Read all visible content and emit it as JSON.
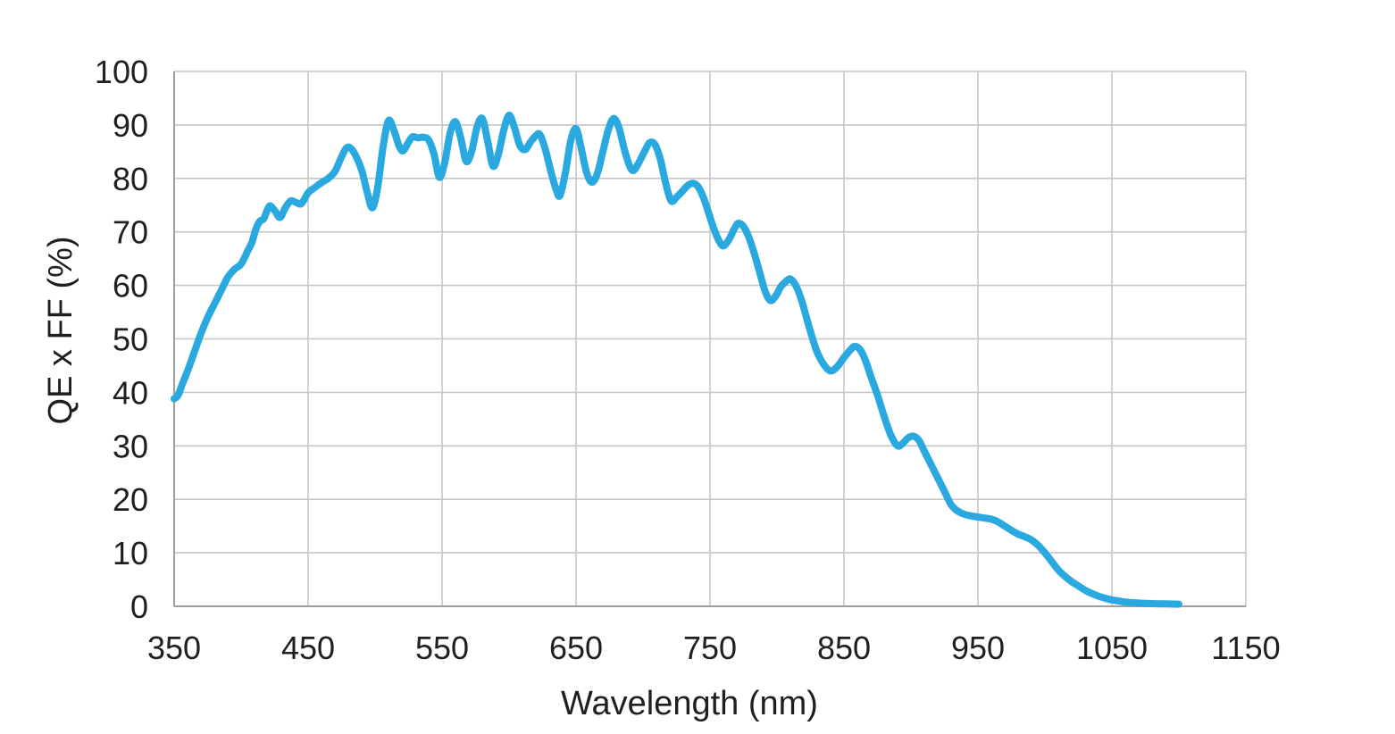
{
  "chart_data": {
    "type": "line",
    "title": "",
    "xlabel": "Wavelength (nm)",
    "ylabel": "QE x FF (%)",
    "xlim": [
      350,
      1150
    ],
    "ylim": [
      0,
      100
    ],
    "x_ticks": [
      350,
      450,
      550,
      650,
      750,
      850,
      950,
      1050,
      1150
    ],
    "y_ticks": [
      0,
      10,
      20,
      30,
      40,
      50,
      60,
      70,
      80,
      90,
      100
    ],
    "grid": true,
    "legend_position": "none",
    "series": [
      {
        "name": "QE x FF",
        "color": "#29A9E0",
        "x": [
          350,
          353,
          356,
          360,
          365,
          370,
          375,
          380,
          385,
          390,
          395,
          400,
          405,
          408,
          411,
          414,
          417,
          421,
          425,
          429,
          433,
          437,
          441,
          445,
          450,
          455,
          460,
          465,
          470,
          474,
          478,
          481,
          485,
          490,
          494,
          498,
          502,
          506,
          510,
          514,
          518,
          521,
          525,
          528,
          532,
          536,
          540,
          544,
          548,
          552,
          556,
          560,
          564,
          568,
          572,
          576,
          580,
          584,
          588,
          592,
          596,
          600,
          604,
          608,
          612,
          616,
          620,
          623,
          627,
          631,
          635,
          638,
          642,
          646,
          650,
          654,
          658,
          662,
          666,
          670,
          674,
          678,
          682,
          686,
          690,
          693,
          697,
          701,
          705,
          709,
          713,
          717,
          721,
          725,
          729,
          733,
          737,
          741,
          745,
          749,
          753,
          757,
          760,
          764,
          768,
          771,
          775,
          779,
          783,
          787,
          791,
          795,
          799,
          803,
          807,
          810,
          814,
          818,
          822,
          826,
          830,
          835,
          840,
          845,
          850,
          855,
          858,
          862,
          866,
          870,
          875,
          880,
          885,
          890,
          894,
          898,
          902,
          906,
          910,
          915,
          920,
          925,
          930,
          935,
          940,
          945,
          950,
          955,
          960,
          965,
          970,
          975,
          980,
          985,
          990,
          995,
          1000,
          1005,
          1010,
          1015,
          1020,
          1025,
          1030,
          1035,
          1040,
          1045,
          1050,
          1055,
          1060,
          1070,
          1080,
          1090,
          1100
        ],
        "y": [
          38.8,
          39.5,
          41.5,
          44,
          47.5,
          51,
          54,
          56.5,
          59,
          61.5,
          63,
          64,
          66.5,
          68,
          70.5,
          72,
          72.5,
          74.8,
          74,
          72.7,
          74.5,
          75.8,
          75.5,
          75.3,
          77.3,
          78.3,
          79.2,
          80,
          81.3,
          83.5,
          85.5,
          85.8,
          84.5,
          81.5,
          77.5,
          74.5,
          78.5,
          86,
          90.8,
          89,
          86,
          85.2,
          86.8,
          87.8,
          87.6,
          87.7,
          87.2,
          84.5,
          80.2,
          83,
          88.5,
          90.6,
          87.5,
          83.2,
          85,
          89.5,
          91.2,
          87,
          82.3,
          84.5,
          89,
          91.8,
          89.5,
          86.2,
          85.4,
          86.8,
          88,
          88.2,
          85.5,
          81.5,
          78,
          76.8,
          81,
          87,
          89.3,
          85.5,
          81,
          79.3,
          81,
          85,
          89,
          91.2,
          89.5,
          85.5,
          82.3,
          81.5,
          83,
          85,
          86.7,
          86.3,
          83.5,
          79,
          75.8,
          76.5,
          77.5,
          78.6,
          79.1,
          78.5,
          76.5,
          73.5,
          70.5,
          68.2,
          67.4,
          68.5,
          70.5,
          71.6,
          71,
          69,
          66,
          62.5,
          59,
          57.2,
          58,
          59.8,
          60.8,
          61.2,
          60,
          57.5,
          54,
          50.5,
          47.5,
          45.2,
          44,
          44.8,
          46.5,
          48,
          48.6,
          48,
          46,
          43,
          39.5,
          35.5,
          32,
          30,
          30.5,
          31.5,
          31.8,
          31,
          29,
          26.5,
          24,
          21.5,
          19,
          17.8,
          17.2,
          16.9,
          16.7,
          16.5,
          16.3,
          15.8,
          15,
          14.2,
          13.5,
          13,
          12.4,
          11.4,
          10,
          8.4,
          6.8,
          5.6,
          4.6,
          3.8,
          3,
          2.4,
          1.9,
          1.5,
          1.2,
          1,
          0.8,
          0.6,
          0.5,
          0.45,
          0.4
        ]
      }
    ]
  },
  "style": {
    "line_color": "#29A9E0",
    "grid_color": "#c6c6c6",
    "axis_color": "#9d9d9d",
    "text_color": "#1f1f1f",
    "background": "#ffffff"
  }
}
